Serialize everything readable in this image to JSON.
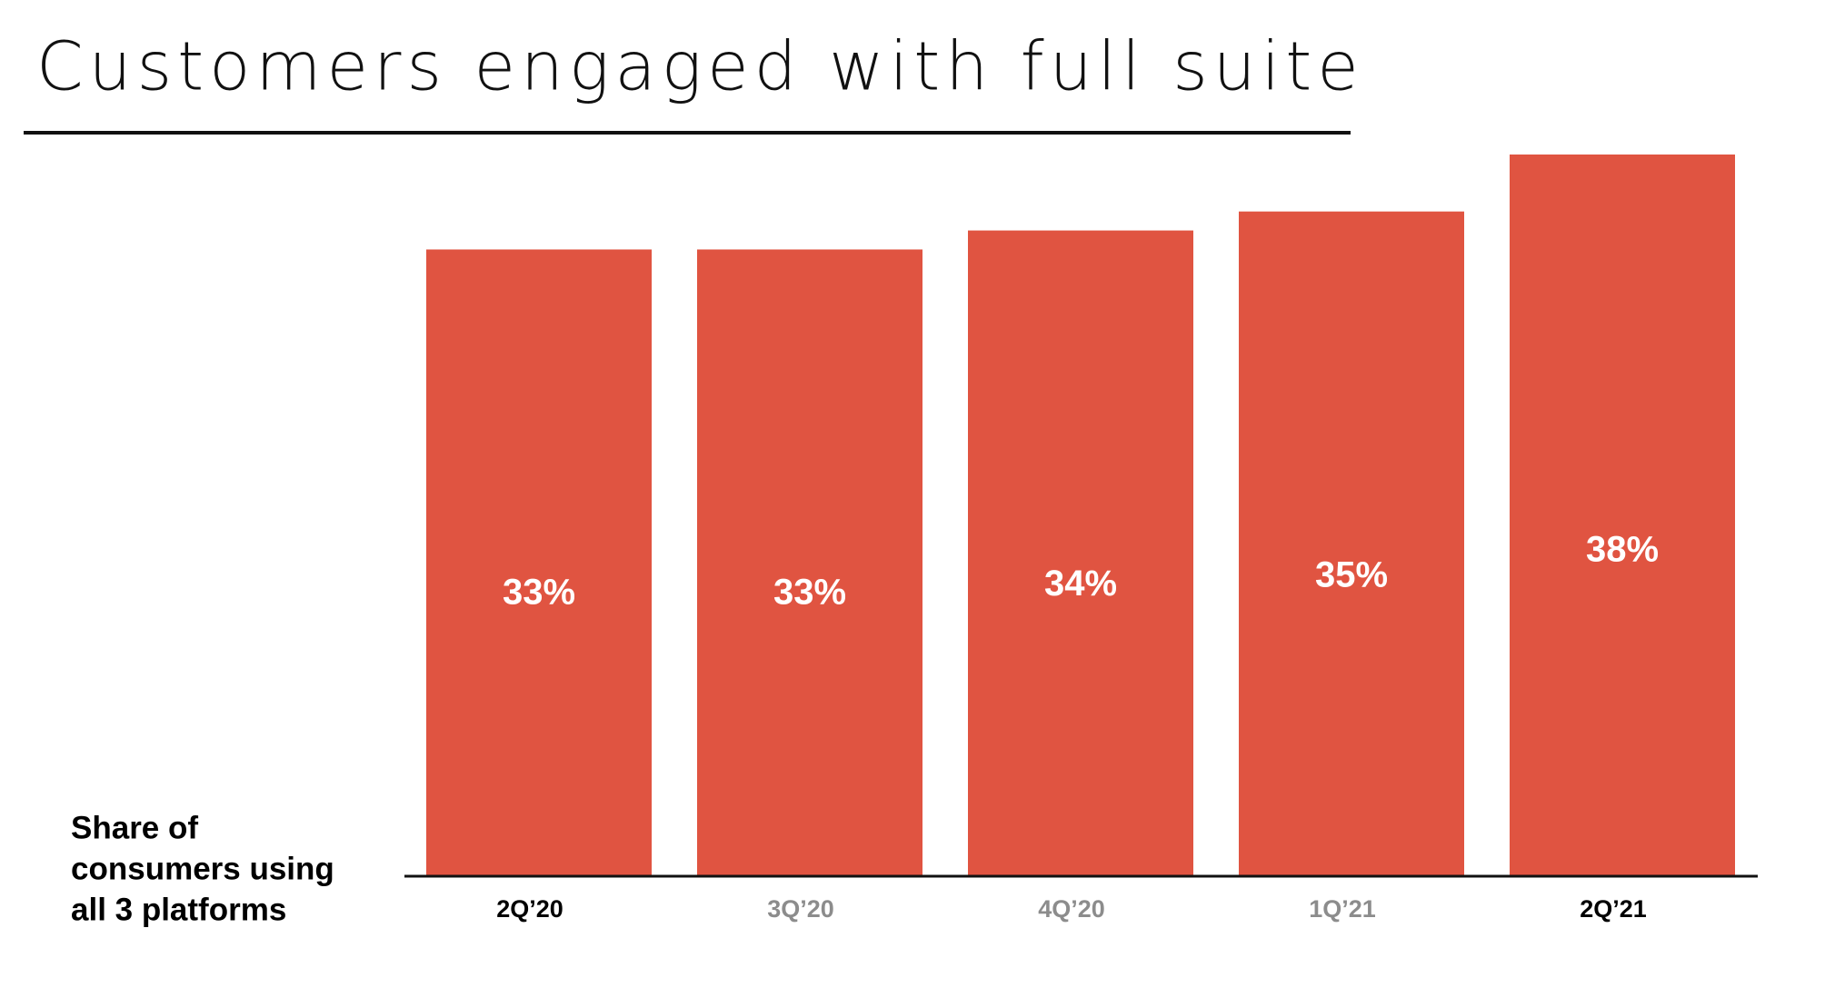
{
  "chart_data": {
    "type": "bar",
    "title": "Customers engaged with full suite",
    "ylabel": [
      "Share of",
      "consumers using",
      "all 3 platforms"
    ],
    "categories": [
      "2Q’20",
      "3Q’20",
      "4Q’20",
      "1Q’21",
      "2Q’21"
    ],
    "category_colors": [
      "#000000",
      "#8c8c8c",
      "#8c8c8c",
      "#8c8c8c",
      "#000000"
    ],
    "values": [
      33,
      33,
      34,
      35,
      38
    ],
    "value_labels": [
      "33%",
      "33%",
      "34%",
      "35%",
      "38%"
    ],
    "color": "#e05441",
    "ylim": [
      0,
      38
    ],
    "grid": false
  }
}
